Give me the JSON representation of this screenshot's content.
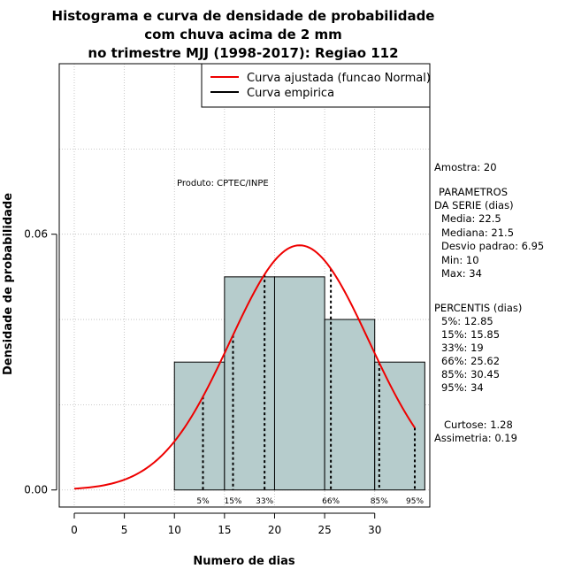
{
  "chart_data": {
    "type": "histogram",
    "title": [
      "Histograma e curva de densidade de probabilidade",
      "com chuva acima de 2 mm",
      "no trimestre MJJ (1998-2017): Regiao 112"
    ],
    "xlabel": "Numero de dias",
    "ylabel": "Densidade de probabilidade",
    "xlim": [
      -1.5,
      35.5
    ],
    "ylim": [
      -0.004,
      0.1
    ],
    "x_ticks": [
      0,
      5,
      10,
      15,
      20,
      25,
      30
    ],
    "x_tick_labels": [
      "0",
      "5",
      "10",
      "15",
      "20",
      "25",
      "30"
    ],
    "y_ticks": [
      0.0,
      0.06
    ],
    "y_tick_labels": [
      "0.00",
      "0.06"
    ],
    "grid": "dotted",
    "bars": [
      {
        "x0": 10,
        "x1": 15,
        "density": 0.03
      },
      {
        "x0": 15,
        "x1": 20,
        "density": 0.05
      },
      {
        "x0": 20,
        "x1": 25,
        "density": 0.05
      },
      {
        "x0": 25,
        "x1": 30,
        "density": 0.04
      },
      {
        "x0": 30,
        "x1": 35,
        "density": 0.03
      }
    ],
    "series": [
      {
        "name": "Curva ajustada (funcao Normal)",
        "color": "#ee0000",
        "mean": 22.5,
        "sd": 6.95,
        "x_range": [
          0,
          34
        ]
      },
      {
        "name": "Curva empirica",
        "color": "#000000"
      }
    ],
    "percentiles": [
      {
        "label": "5%",
        "x": 12.85
      },
      {
        "label": "15%",
        "x": 15.85
      },
      {
        "label": "33%",
        "x": 19
      },
      {
        "label": "66%",
        "x": 25.62
      },
      {
        "label": "85%",
        "x": 30.45
      },
      {
        "label": "95%",
        "x": 34
      }
    ],
    "annotation": "Produto: CPTEC/INPE",
    "legend_position": "top-right",
    "bar_color": "#b6cccc"
  },
  "stats": {
    "amostra": "Amostra: 20",
    "parametros_title_1": "PARAMETROS",
    "parametros_title_2": "DA SERIE (dias)",
    "media": "Media: 22.5",
    "mediana": "Mediana: 21.5",
    "desvio": "Desvio padrao: 6.95",
    "min": "Min: 10",
    "max": "Max: 34",
    "percentis_title": "PERCENTIS (dias)",
    "p5": "5%: 12.85",
    "p15": "15%: 15.85",
    "p33": "33%: 19",
    "p66": "66%: 25.62",
    "p85": "85%: 30.45",
    "p95": "95%: 34",
    "curtose": "Curtose: 1.28",
    "assimetria": "Assimetria: 0.19"
  }
}
